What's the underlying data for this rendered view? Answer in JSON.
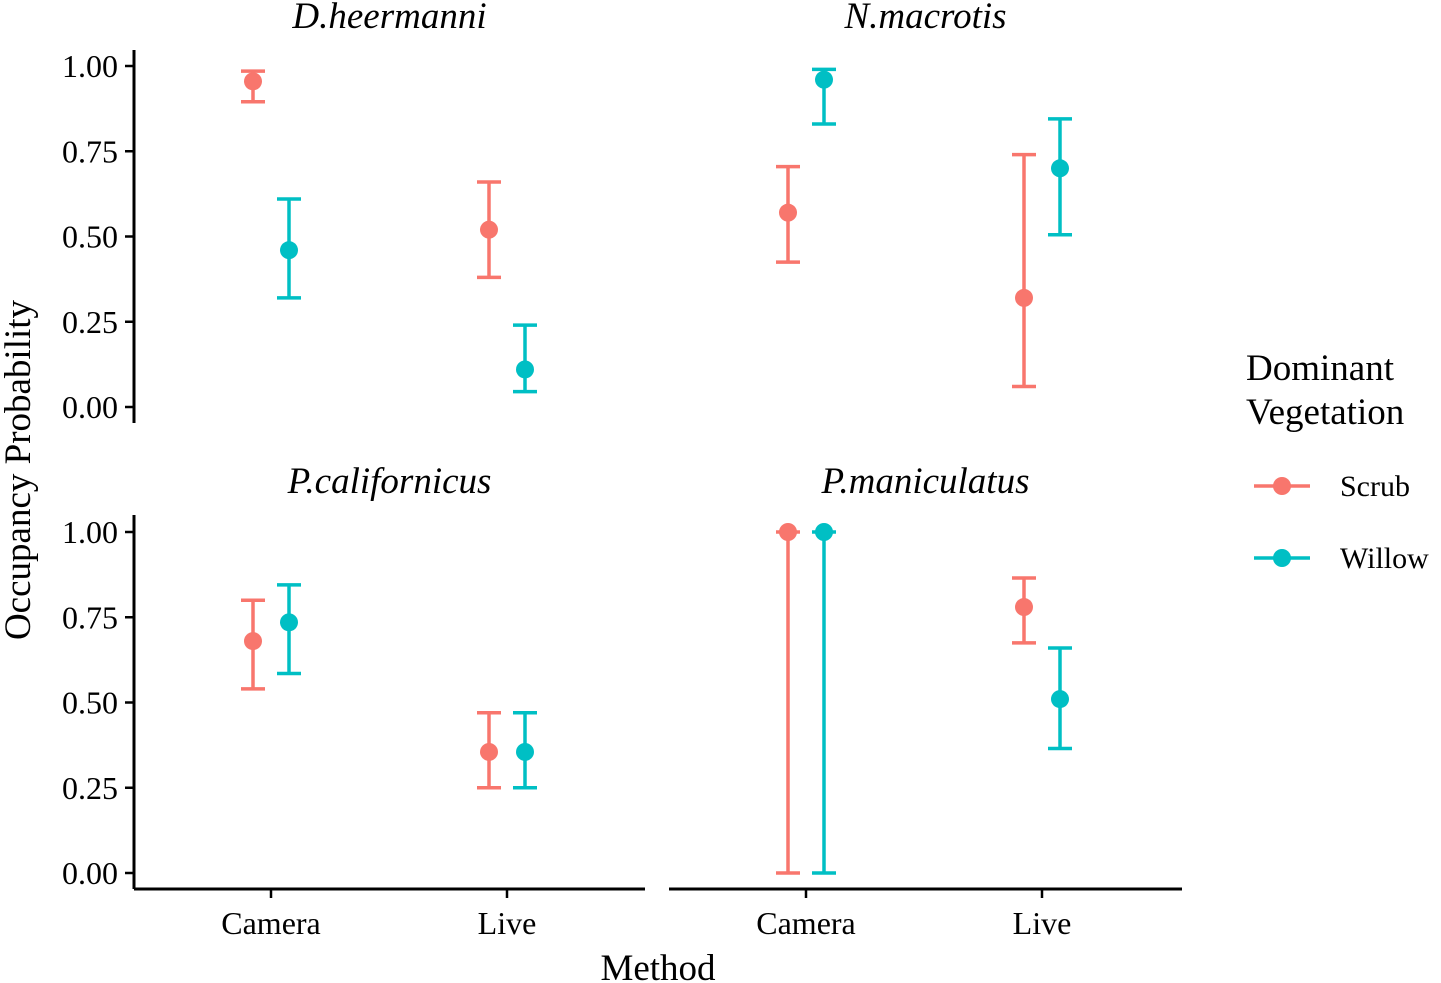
{
  "chart_data": {
    "type": "errorbar",
    "xlabel": "Method",
    "ylabel": "Occupancy Probability",
    "categories": [
      "Camera",
      "Live"
    ],
    "ylim": [
      0,
      1
    ],
    "yticks": [
      "0.00",
      "0.25",
      "0.50",
      "0.75",
      "1.00"
    ],
    "legend": {
      "title_lines": [
        "Dominant",
        "Vegetation"
      ],
      "placement": "right",
      "entries": [
        {
          "name": "Scrub",
          "color": "#F8766D"
        },
        {
          "name": "Willow",
          "color": "#00BFC4"
        }
      ]
    },
    "panels": [
      {
        "title": "D.heermanni",
        "series": [
          {
            "name": "Scrub",
            "points": [
              {
                "category": "Camera",
                "estimate": 0.955,
                "lower": 0.895,
                "upper": 0.985
              },
              {
                "category": "Live",
                "estimate": 0.52,
                "lower": 0.38,
                "upper": 0.66
              }
            ]
          },
          {
            "name": "Willow",
            "points": [
              {
                "category": "Camera",
                "estimate": 0.46,
                "lower": 0.32,
                "upper": 0.61
              },
              {
                "category": "Live",
                "estimate": 0.11,
                "lower": 0.045,
                "upper": 0.24
              }
            ]
          }
        ]
      },
      {
        "title": "N.macrotis",
        "series": [
          {
            "name": "Scrub",
            "points": [
              {
                "category": "Camera",
                "estimate": 0.57,
                "lower": 0.425,
                "upper": 0.705
              },
              {
                "category": "Live",
                "estimate": 0.32,
                "lower": 0.06,
                "upper": 0.74
              }
            ]
          },
          {
            "name": "Willow",
            "points": [
              {
                "category": "Camera",
                "estimate": 0.96,
                "lower": 0.83,
                "upper": 0.99
              },
              {
                "category": "Live",
                "estimate": 0.7,
                "lower": 0.505,
                "upper": 0.845
              }
            ]
          }
        ]
      },
      {
        "title": "P.californicus",
        "series": [
          {
            "name": "Scrub",
            "points": [
              {
                "category": "Camera",
                "estimate": 0.68,
                "lower": 0.54,
                "upper": 0.8
              },
              {
                "category": "Live",
                "estimate": 0.355,
                "lower": 0.25,
                "upper": 0.47
              }
            ]
          },
          {
            "name": "Willow",
            "points": [
              {
                "category": "Camera",
                "estimate": 0.735,
                "lower": 0.585,
                "upper": 0.845
              },
              {
                "category": "Live",
                "estimate": 0.355,
                "lower": 0.25,
                "upper": 0.47
              }
            ]
          }
        ]
      },
      {
        "title": "P.maniculatus",
        "series": [
          {
            "name": "Scrub",
            "points": [
              {
                "category": "Camera",
                "estimate": 1.0,
                "lower": 0.0,
                "upper": 1.0
              },
              {
                "category": "Live",
                "estimate": 0.78,
                "lower": 0.675,
                "upper": 0.865
              }
            ]
          },
          {
            "name": "Willow",
            "points": [
              {
                "category": "Camera",
                "estimate": 1.0,
                "lower": 0.0,
                "upper": 1.0
              },
              {
                "category": "Live",
                "estimate": 0.51,
                "lower": 0.365,
                "upper": 0.66
              }
            ]
          }
        ]
      }
    ]
  }
}
